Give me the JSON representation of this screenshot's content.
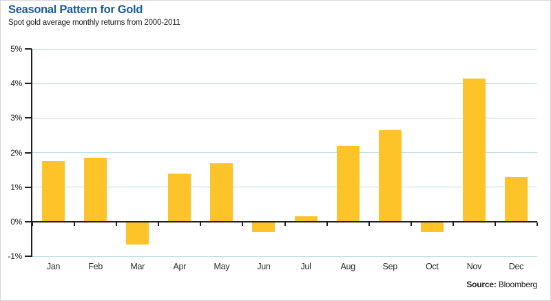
{
  "header": {
    "title": "Seasonal Pattern for Gold",
    "subtitle": "Spot gold average monthly returns from 2000-2011"
  },
  "source": {
    "label": "Source:",
    "value": "Bloomberg"
  },
  "colors": {
    "title_blue": "#185a9d",
    "bar_yellow": "#fdc42a",
    "gridline_blue": "#bfdae3",
    "axis_black": "#1f1f1f"
  },
  "chart_data": {
    "type": "bar",
    "title": "Seasonal Pattern for Gold",
    "subtitle": "Spot gold average monthly returns from 2000-2011",
    "categories": [
      "Jan",
      "Feb",
      "Mar",
      "Apr",
      "May",
      "Jun",
      "Jul",
      "Aug",
      "Sep",
      "Oct",
      "Nov",
      "Dec"
    ],
    "values": [
      1.75,
      1.85,
      -0.65,
      1.4,
      1.7,
      -0.3,
      0.15,
      2.2,
      2.65,
      -0.3,
      4.15,
      1.3
    ],
    "unit": "%",
    "xlabel": "",
    "ylabel": "",
    "ylim": [
      -1,
      5
    ],
    "ytick_step": 1,
    "ytick_labels": [
      "5%",
      "4%",
      "3%",
      "2%",
      "1%",
      "0%",
      "-1%"
    ],
    "grid": true,
    "legend": "none",
    "source": "Bloomberg"
  }
}
